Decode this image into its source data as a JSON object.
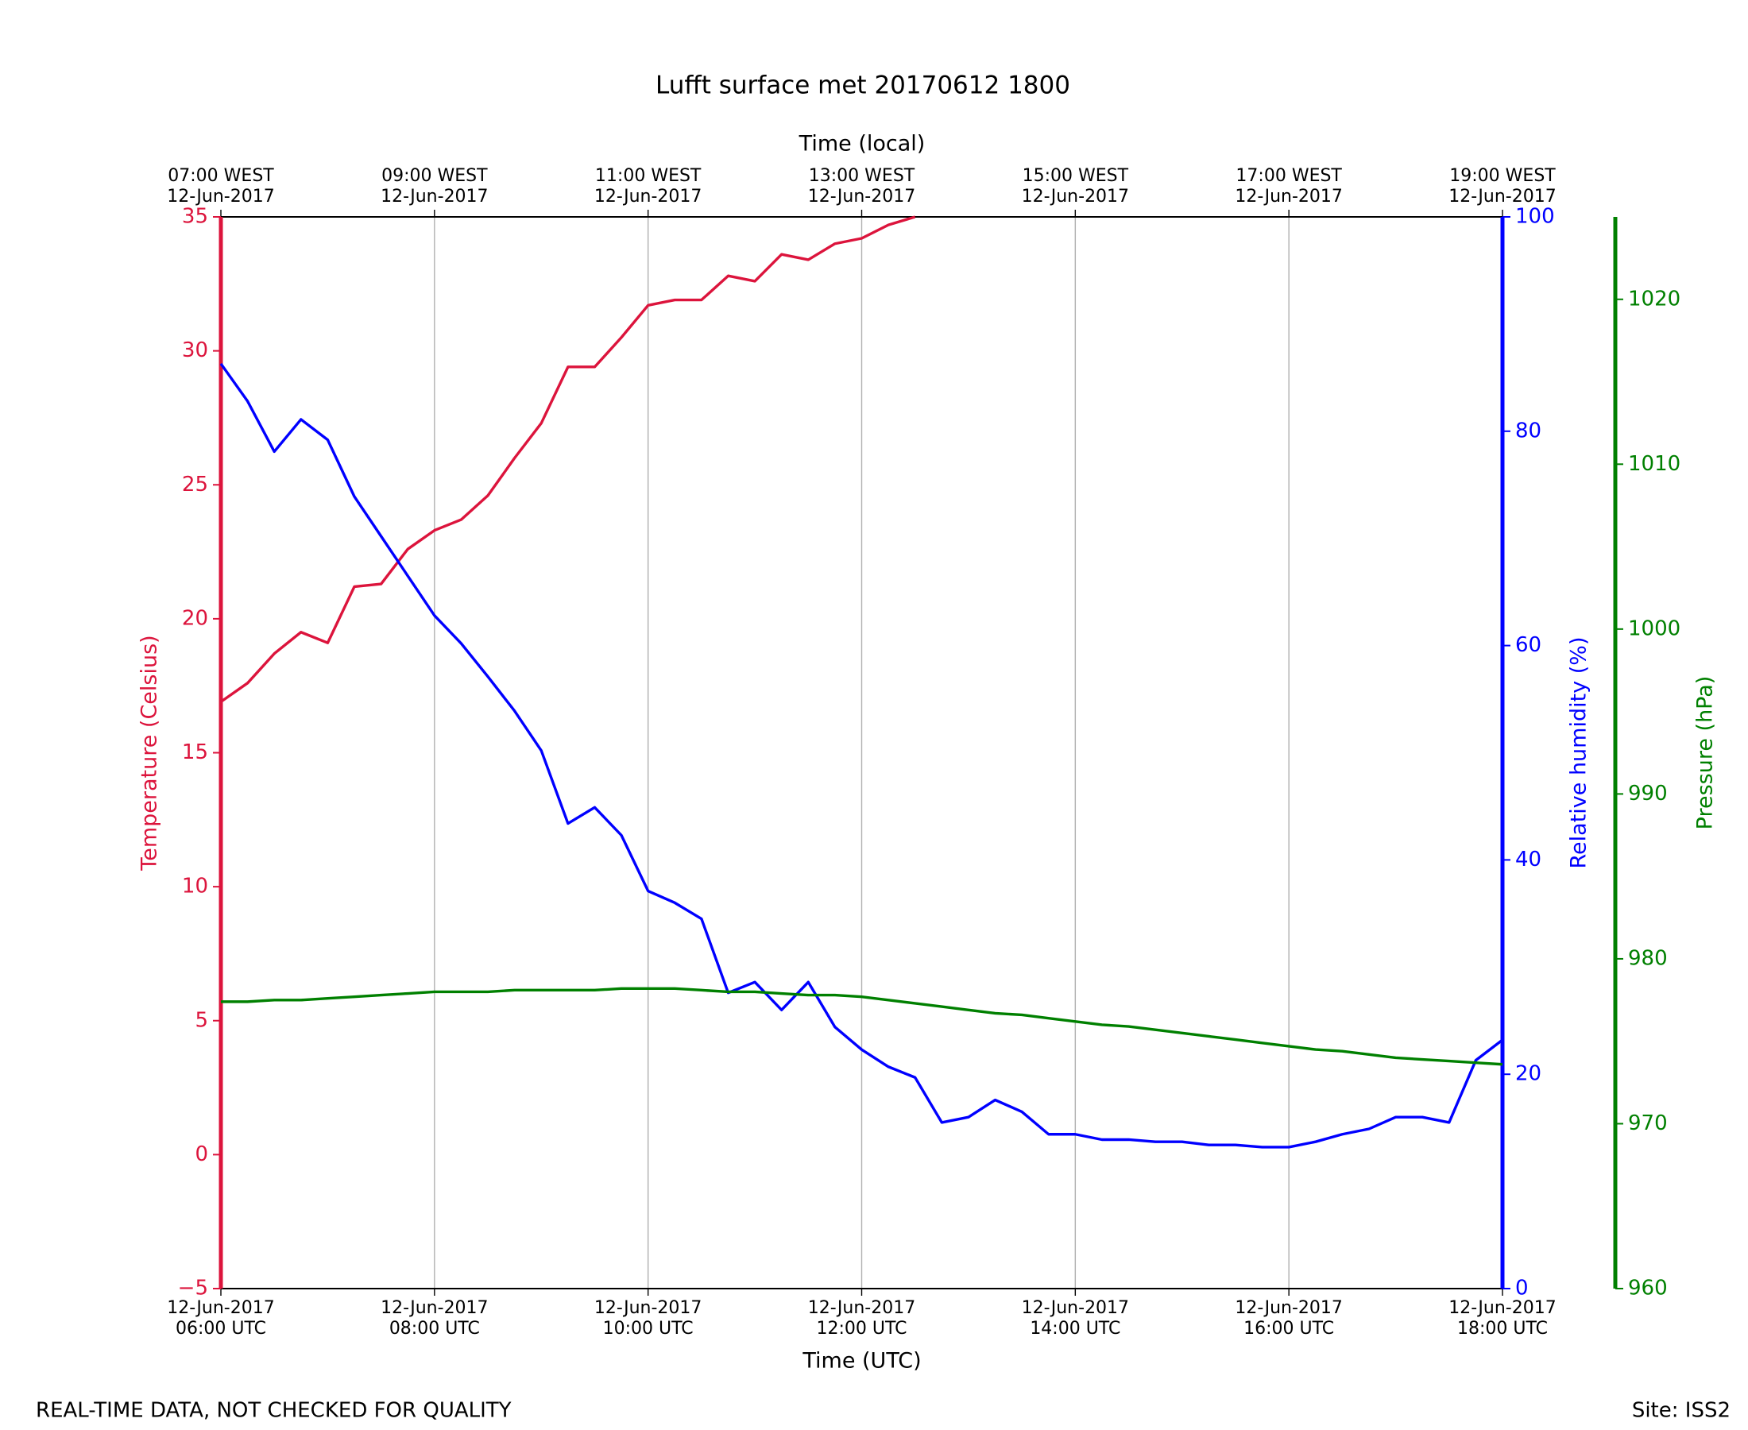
{
  "chart_data": {
    "type": "line",
    "title": "Lufft surface met 20170612 1800",
    "xlabel": "Time (UTC)",
    "x2label": "Time (local)",
    "ylabel": "Temperature (Celsius)",
    "y2label": "Relative humidity (%)",
    "y3label": "Pressure (hPa)",
    "annotations": [
      "REAL-TIME DATA, NOT CHECKED FOR QUALITY",
      "Site: ISS2"
    ],
    "grid": true,
    "xlim": [
      "2017-06-12T06:00",
      "2017-06-12T18:00"
    ],
    "xticks": [
      {
        "value": "2017-06-12T06:00",
        "label": "12-Jun-2017\n06:00 UTC"
      },
      {
        "value": "2017-06-12T08:00",
        "label": "12-Jun-2017\n08:00 UTC"
      },
      {
        "value": "2017-06-12T10:00",
        "label": "12-Jun-2017\n10:00 UTC"
      },
      {
        "value": "2017-06-12T12:00",
        "label": "12-Jun-2017\n12:00 UTC"
      },
      {
        "value": "2017-06-12T14:00",
        "label": "12-Jun-2017\n14:00 UTC"
      },
      {
        "value": "2017-06-12T16:00",
        "label": "12-Jun-2017\n16:00 UTC"
      },
      {
        "value": "2017-06-12T18:00",
        "label": "12-Jun-2017\n18:00 UTC"
      }
    ],
    "x2ticks": [
      {
        "value": "2017-06-12T06:00",
        "label": "07:00 WEST\n12-Jun-2017"
      },
      {
        "value": "2017-06-12T08:00",
        "label": "09:00 WEST\n12-Jun-2017"
      },
      {
        "value": "2017-06-12T10:00",
        "label": "11:00 WEST\n12-Jun-2017"
      },
      {
        "value": "2017-06-12T12:00",
        "label": "13:00 WEST\n12-Jun-2017"
      },
      {
        "value": "2017-06-12T14:00",
        "label": "15:00 WEST\n12-Jun-2017"
      },
      {
        "value": "2017-06-12T16:00",
        "label": "17:00 WEST\n12-Jun-2017"
      },
      {
        "value": "2017-06-12T18:00",
        "label": "19:00 WEST\n12-Jun-2017"
      }
    ],
    "ylim": [
      -5,
      35
    ],
    "yticks": [
      {
        "value": -5,
        "label": "−5"
      },
      0,
      5,
      10,
      15,
      20,
      25,
      30,
      35
    ],
    "y2lim": [
      0,
      100
    ],
    "y2ticks": [
      0,
      20,
      40,
      60,
      80,
      100
    ],
    "y3lim": [
      960,
      1025
    ],
    "y3ticks": [
      960,
      970,
      980,
      990,
      1000,
      1010,
      1020
    ],
    "x": [
      "2017-06-12T06:00",
      "2017-06-12T06:15",
      "2017-06-12T06:30",
      "2017-06-12T06:45",
      "2017-06-12T07:00",
      "2017-06-12T07:15",
      "2017-06-12T07:30",
      "2017-06-12T07:45",
      "2017-06-12T08:00",
      "2017-06-12T08:15",
      "2017-06-12T08:30",
      "2017-06-12T08:45",
      "2017-06-12T09:00",
      "2017-06-12T09:15",
      "2017-06-12T09:30",
      "2017-06-12T09:45",
      "2017-06-12T10:00",
      "2017-06-12T10:15",
      "2017-06-12T10:30",
      "2017-06-12T10:45",
      "2017-06-12T11:00",
      "2017-06-12T11:15",
      "2017-06-12T11:30",
      "2017-06-12T11:45",
      "2017-06-12T12:00",
      "2017-06-12T12:15",
      "2017-06-12T12:30",
      "2017-06-12T12:45",
      "2017-06-12T13:00",
      "2017-06-12T13:15",
      "2017-06-12T13:30",
      "2017-06-12T13:45",
      "2017-06-12T14:00",
      "2017-06-12T14:15",
      "2017-06-12T14:30",
      "2017-06-12T14:45",
      "2017-06-12T15:00",
      "2017-06-12T15:15",
      "2017-06-12T15:30",
      "2017-06-12T15:45",
      "2017-06-12T16:00",
      "2017-06-12T16:15",
      "2017-06-12T16:30",
      "2017-06-12T16:45",
      "2017-06-12T17:00",
      "2017-06-12T17:15",
      "2017-06-12T17:30",
      "2017-06-12T17:45",
      "2017-06-12T18:00"
    ],
    "series": [
      {
        "name": "Temperature",
        "color": "#dc143c",
        "axis": "y",
        "values": [
          16.9,
          17.6,
          18.7,
          19.5,
          19.1,
          21.2,
          21.3,
          22.6,
          23.3,
          23.7,
          24.6,
          26.0,
          27.3,
          29.4,
          29.4,
          30.5,
          31.7,
          31.9,
          31.9,
          32.8,
          32.6,
          33.6,
          33.4,
          34.0,
          34.2,
          34.7,
          35.0,
          null,
          null,
          null,
          null,
          null,
          null,
          null,
          null,
          null,
          null,
          null,
          null,
          null,
          null,
          null,
          null,
          null,
          null,
          null,
          null,
          null,
          null
        ]
      },
      {
        "name": "Relative humidity",
        "color": "#0000ff",
        "axis": "y2",
        "values": [
          86.3,
          82.8,
          78.1,
          81.1,
          79.2,
          73.9,
          70.2,
          66.5,
          62.8,
          60.2,
          57.1,
          53.9,
          50.2,
          43.4,
          44.9,
          42.3,
          37.1,
          36.0,
          34.5,
          27.6,
          28.6,
          26.0,
          28.6,
          24.4,
          22.3,
          20.7,
          19.7,
          15.5,
          16.0,
          17.6,
          16.5,
          14.4,
          14.4,
          13.9,
          13.9,
          13.7,
          13.7,
          13.4,
          13.4,
          13.2,
          13.2,
          13.7,
          14.4,
          14.9,
          16.0,
          16.0,
          15.5,
          21.3,
          23.2
        ]
      },
      {
        "name": "Pressure",
        "color": "#008000",
        "axis": "y3",
        "values": [
          977.4,
          977.4,
          977.5,
          977.5,
          977.6,
          977.7,
          977.8,
          977.9,
          978.0,
          978.0,
          978.0,
          978.1,
          978.1,
          978.1,
          978.1,
          978.2,
          978.2,
          978.2,
          978.1,
          978.0,
          978.0,
          977.9,
          977.8,
          977.8,
          977.7,
          977.5,
          977.3,
          977.1,
          976.9,
          976.7,
          976.6,
          976.4,
          976.2,
          976.0,
          975.9,
          975.7,
          975.5,
          975.3,
          975.1,
          974.9,
          974.7,
          974.5,
          974.4,
          974.2,
          974.0,
          973.9,
          973.8,
          973.7,
          973.6
        ]
      }
    ]
  }
}
